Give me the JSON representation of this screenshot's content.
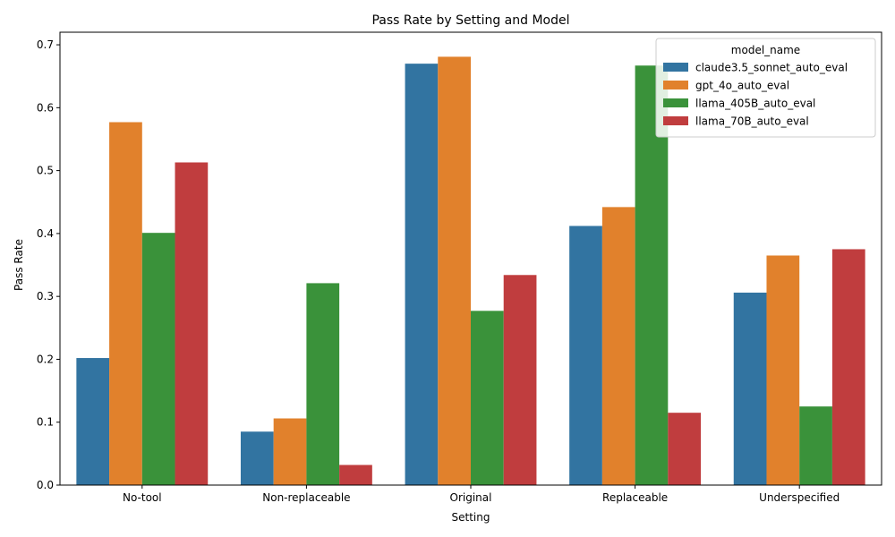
{
  "chart_data": {
    "type": "bar",
    "title": "Pass Rate by Setting and Model",
    "xlabel": "Setting",
    "ylabel": "Pass Rate",
    "ylim": [
      0,
      0.72
    ],
    "yticks": [
      "0.0",
      "0.1",
      "0.2",
      "0.3",
      "0.4",
      "0.5",
      "0.6",
      "0.7"
    ],
    "categories": [
      "No-tool",
      "Non-replaceable",
      "Original",
      "Replaceable",
      "Underspecified"
    ],
    "legend": {
      "title": "model_name",
      "placement": "top-right"
    },
    "grid": false,
    "series": [
      {
        "name": "claude3.5_sonnet_auto_eval",
        "color": "#3274a1",
        "values": [
          0.202,
          0.085,
          0.67,
          0.412,
          0.306
        ]
      },
      {
        "name": "gpt_4o_auto_eval",
        "color": "#e1812c",
        "values": [
          0.577,
          0.106,
          0.681,
          0.442,
          0.365
        ]
      },
      {
        "name": "llama_405B_auto_eval",
        "color": "#3a923a",
        "values": [
          0.401,
          0.321,
          0.277,
          0.667,
          0.125
        ]
      },
      {
        "name": "llama_70B_auto_eval",
        "color": "#c03d3e",
        "values": [
          0.513,
          0.032,
          0.334,
          0.115,
          0.375
        ]
      }
    ]
  }
}
